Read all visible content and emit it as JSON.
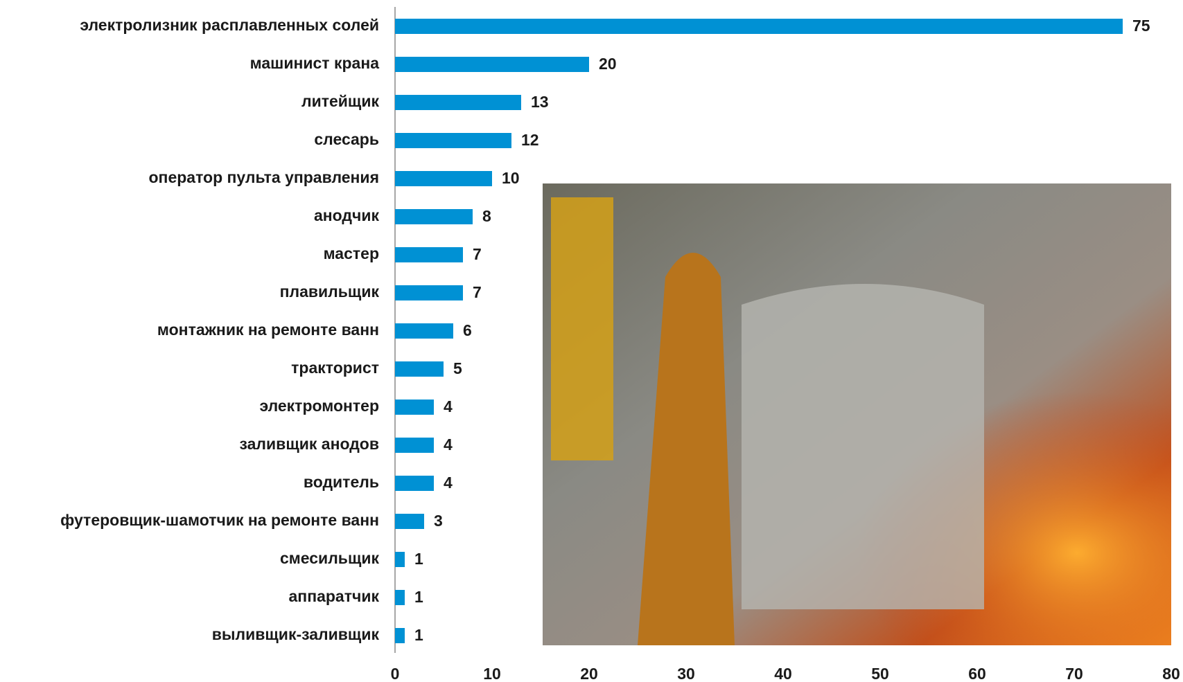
{
  "chart_data": {
    "type": "barh",
    "categories": [
      "электролизник расплавленных солей",
      "машинист крана",
      "литейщик",
      "слесарь",
      "оператор пульта управления",
      "анодчик",
      "мастер",
      "плавильщик",
      "монтажник на ремонте ванн",
      "тракторист",
      "электромонтер",
      "заливщик анодов",
      "водитель",
      "футеровщик-шамотчик на ремонте ванн",
      "смесильщик",
      "аппаратчик",
      "выливщик-заливщик"
    ],
    "values": [
      75,
      20,
      13,
      12,
      10,
      8,
      7,
      7,
      6,
      5,
      4,
      4,
      4,
      3,
      1,
      1,
      1
    ],
    "color": "#0091d4",
    "xlim": [
      0,
      80
    ],
    "xticks": [
      0,
      10,
      20,
      30,
      40,
      50,
      60,
      70,
      80
    ]
  }
}
